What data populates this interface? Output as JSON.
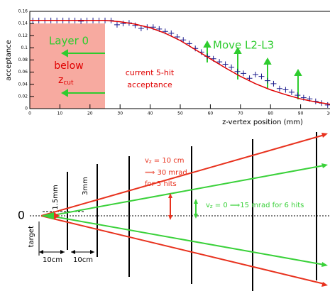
{
  "chart_data": {
    "type": "scatter",
    "ylabel": "acceptance",
    "xlabel": "z-vertex position (mm)",
    "xlim": [
      0,
      100
    ],
    "ylim": [
      0,
      0.16
    ],
    "xticks": [
      0,
      10,
      20,
      30,
      40,
      50,
      60,
      70,
      80,
      90,
      100
    ],
    "yticks": [
      0,
      0.02,
      0.04,
      0.06,
      0.08,
      0.1,
      0.12,
      0.14,
      0.16
    ],
    "series": [
      {
        "color": "#1a1a8c",
        "marker": "+",
        "x": [
          1,
          3,
          5,
          7,
          9,
          11,
          13,
          15,
          17,
          19,
          21,
          23,
          25,
          27,
          29,
          31,
          33,
          35,
          37,
          39,
          41,
          43,
          45,
          47,
          49,
          51,
          53,
          55,
          57,
          59,
          61,
          63,
          65,
          67,
          69,
          71,
          73,
          75,
          77,
          79,
          81,
          83,
          85,
          87,
          89,
          91,
          93,
          95,
          97,
          99
        ],
        "values": [
          0.145,
          0.145,
          0.145,
          0.145,
          0.145,
          0.145,
          0.145,
          0.145,
          0.144,
          0.145,
          0.145,
          0.145,
          0.145,
          0.145,
          0.138,
          0.14,
          0.141,
          0.137,
          0.132,
          0.134,
          0.134,
          0.131,
          0.127,
          0.124,
          0.118,
          0.113,
          0.107,
          0.099,
          0.093,
          0.086,
          0.082,
          0.077,
          0.073,
          0.068,
          0.061,
          0.058,
          0.05,
          0.056,
          0.053,
          0.046,
          0.041,
          0.033,
          0.031,
          0.027,
          0.022,
          0.018,
          0.016,
          0.012,
          0.009,
          0.006
        ]
      },
      {
        "color": "#e00000",
        "marker": "line",
        "x": [
          0,
          5,
          10,
          15,
          20,
          25,
          30,
          35,
          40,
          45,
          50,
          55,
          60,
          65,
          70,
          75,
          80,
          85,
          90,
          95,
          100
        ],
        "values": [
          0.145,
          0.145,
          0.145,
          0.145,
          0.145,
          0.145,
          0.143,
          0.139,
          0.133,
          0.124,
          0.112,
          0.097,
          0.082,
          0.067,
          0.053,
          0.041,
          0.031,
          0.023,
          0.016,
          0.011,
          0.007
        ]
      }
    ],
    "annotations": {
      "layer": "Layer 0",
      "below": "below",
      "z": "z",
      "cut": "cut",
      "current": "current 5-hit",
      "acceptance": "acceptance",
      "move": "Move L2-L3"
    }
  },
  "diagram": {
    "origin": "0",
    "target": "target",
    "gap1": "1.5mm",
    "gap2": "3mm",
    "dist1": "10cm",
    "dist2": "10cm",
    "red_note": {
      "v": "v",
      "sub": "z",
      "eq": " = 10 cm",
      "line2": "⟹ 30 mrad",
      "line3": "for 5 hits"
    },
    "green_note": {
      "v": "v",
      "sub": "z",
      "eq": " = 0 ⟹15 mrad for 6 hits"
    }
  }
}
